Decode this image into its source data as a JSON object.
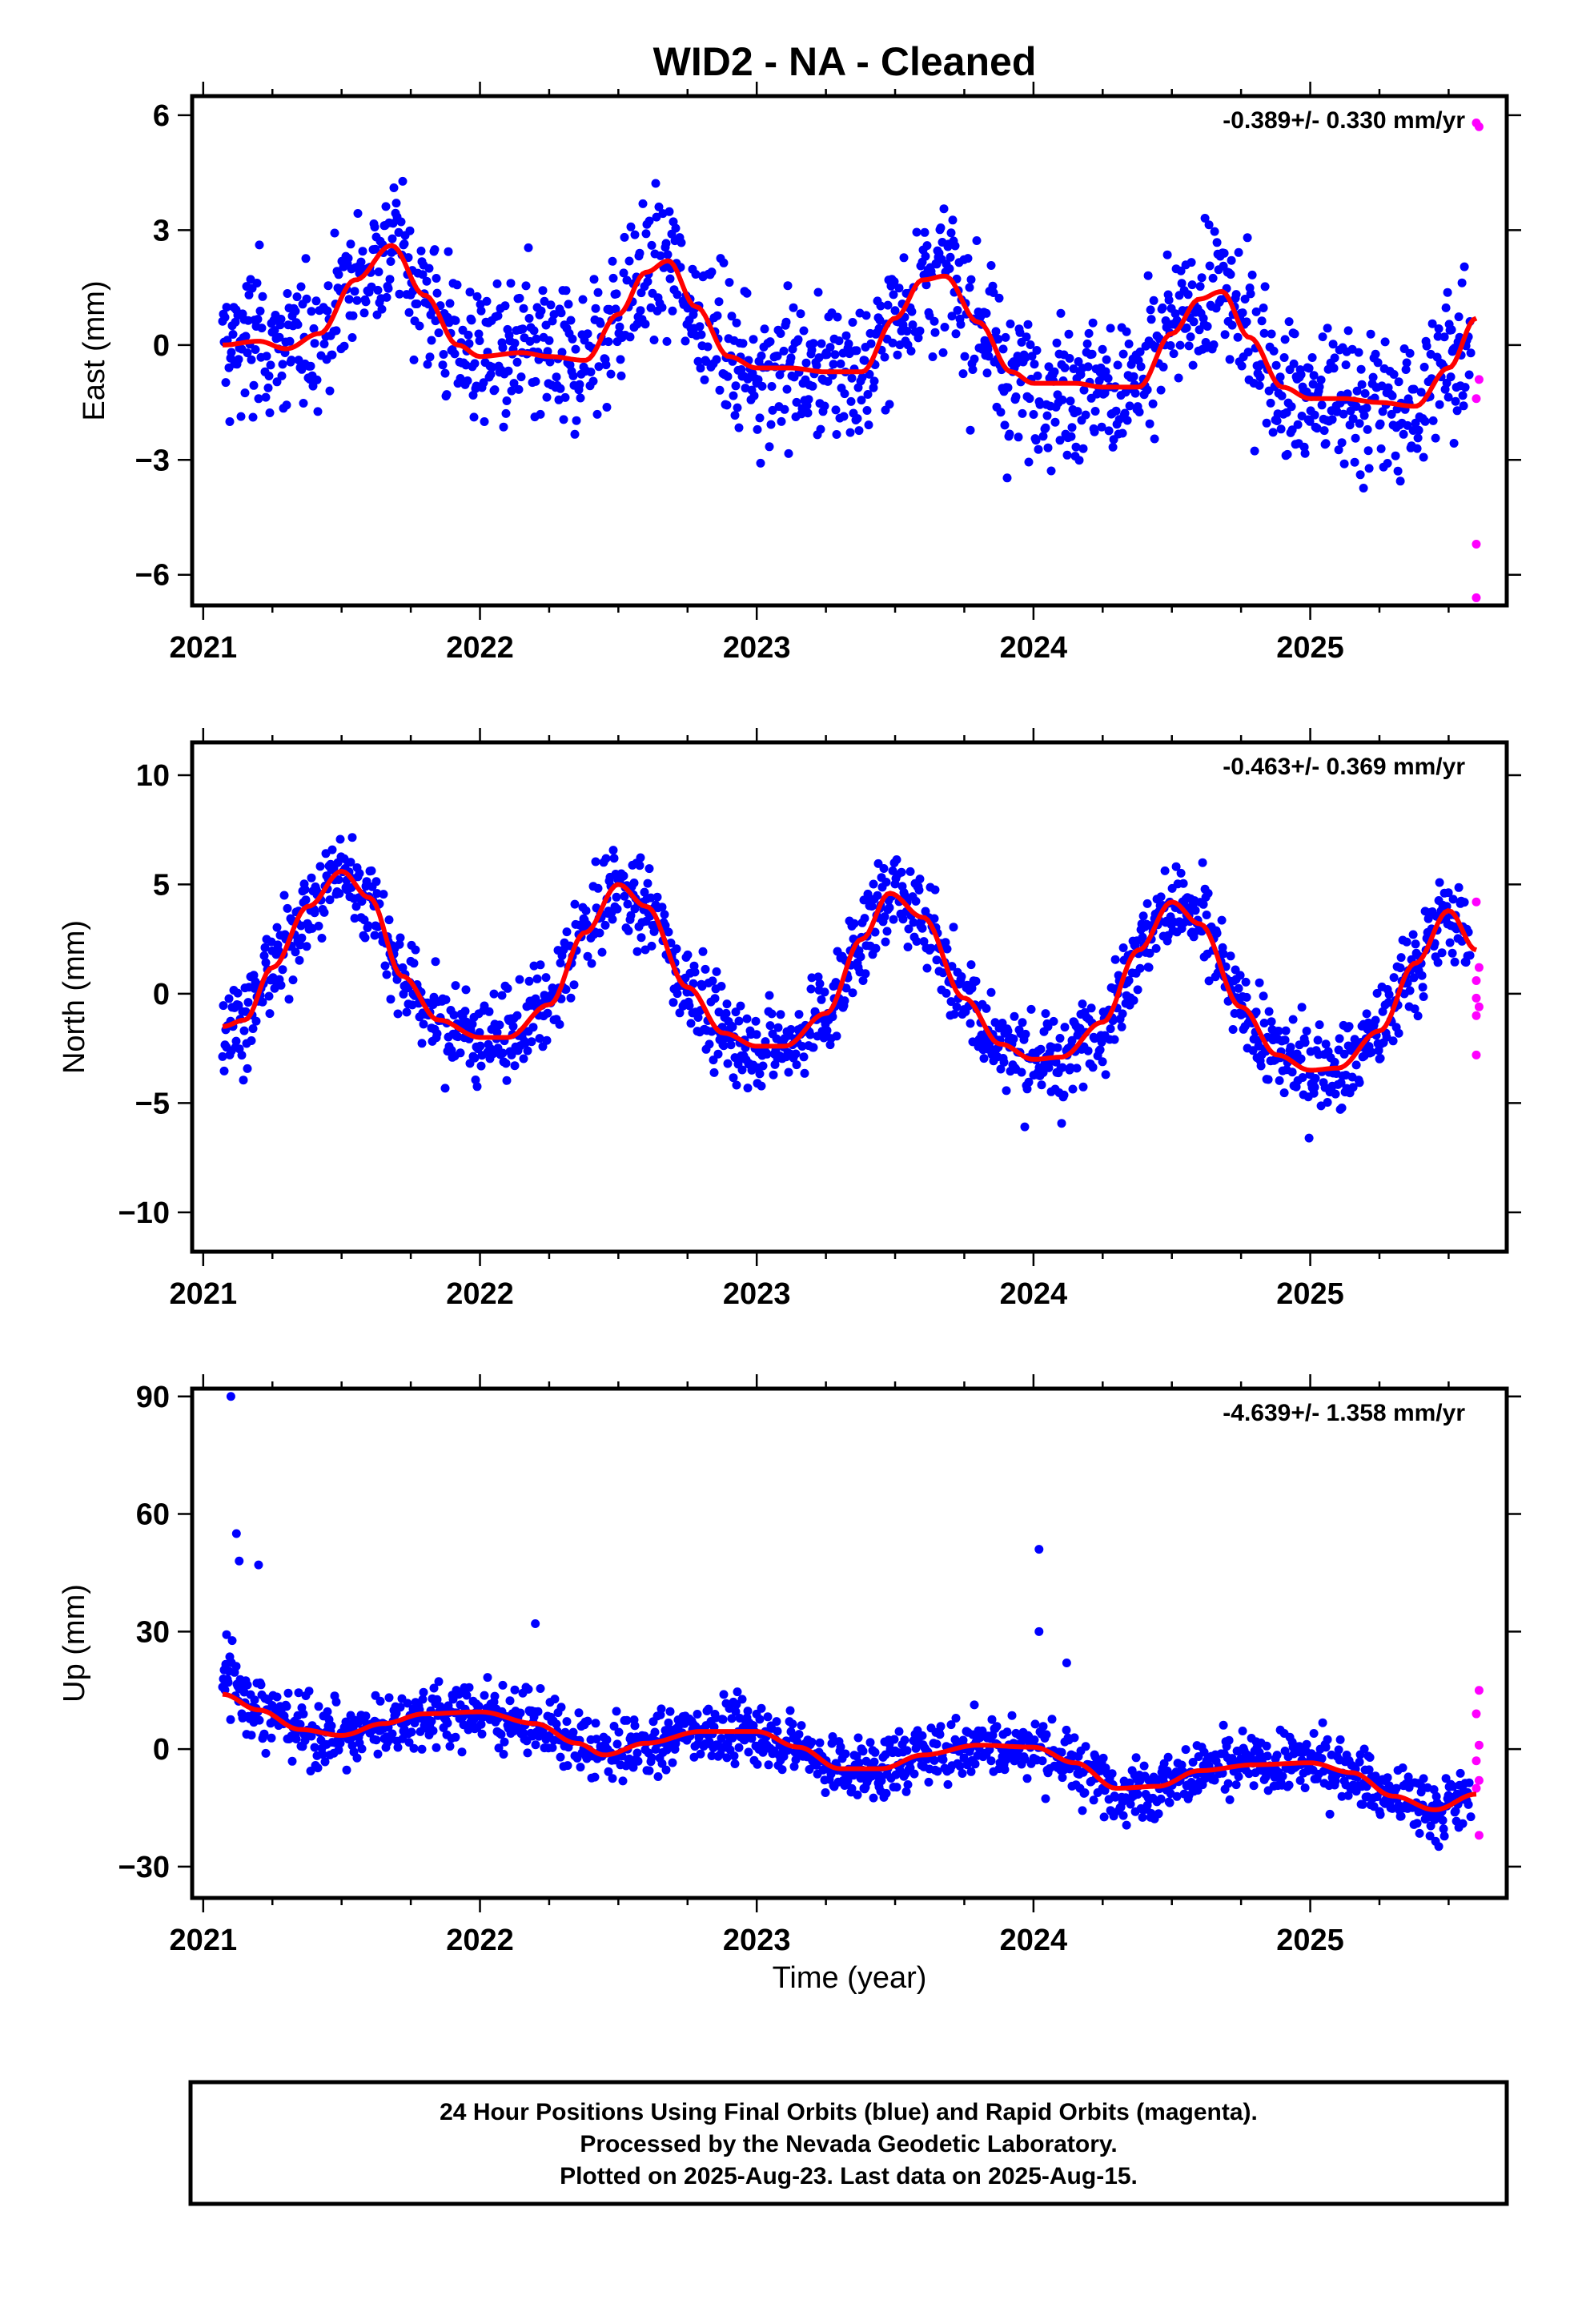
{
  "chart_data": {
    "title": "WID2  - NA - Cleaned",
    "xlabel": "Time (year)",
    "xlim": [
      2020.96,
      2025.71
    ],
    "x_ticks": [
      "2021",
      "2022",
      "2023",
      "2024",
      "2025"
    ],
    "colors": {
      "final_orbits": "#0000ff",
      "rapid_orbits": "#ff00ff",
      "model": "#ff0000"
    },
    "panels": [
      {
        "type": "scatter",
        "ylabel": "East (mm)",
        "ylim": [
          -6.8,
          6.5
        ],
        "yticks": [
          "6",
          "3",
          "0",
          "−3",
          "−6"
        ],
        "ytick_values": [
          6,
          3,
          0,
          -3,
          -6
        ],
        "rate": "-0.389+/- 0.330 mm/yr",
        "model_x": [
          2021.07,
          2021.2,
          2021.3,
          2021.42,
          2021.55,
          2021.68,
          2021.8,
          2021.92,
          2022.0,
          2022.15,
          2022.25,
          2022.38,
          2022.5,
          2022.6,
          2022.68,
          2022.78,
          2022.9,
          2023.0,
          2023.12,
          2023.25,
          2023.38,
          2023.5,
          2023.6,
          2023.68,
          2023.8,
          2023.92,
          2024.0,
          2024.15,
          2024.25,
          2024.38,
          2024.5,
          2024.6,
          2024.68,
          2024.78,
          2024.9,
          2025.0,
          2025.12,
          2025.25,
          2025.38,
          2025.5,
          2025.6
        ],
        "model_y": [
          0.0,
          0.1,
          -0.1,
          0.3,
          1.7,
          2.6,
          1.3,
          0.0,
          -0.3,
          -0.2,
          -0.3,
          -0.4,
          0.8,
          1.9,
          2.2,
          1.0,
          -0.3,
          -0.6,
          -0.6,
          -0.7,
          -0.7,
          0.7,
          1.7,
          1.8,
          0.6,
          -0.7,
          -1.0,
          -1.0,
          -1.1,
          -1.1,
          0.3,
          1.2,
          1.4,
          0.2,
          -1.1,
          -1.4,
          -1.4,
          -1.5,
          -1.6,
          -0.6,
          0.7
        ],
        "rapid_x": [
          2025.6,
          2025.61,
          2025.6,
          2025.61,
          2025.6,
          2025.6
        ],
        "rapid_y": [
          5.8,
          5.7,
          -1.4,
          -0.9,
          -5.2,
          -6.6
        ]
      },
      {
        "type": "scatter",
        "ylabel": "North (mm)",
        "ylim": [
          -11.8,
          11.5
        ],
        "yticks": [
          "10",
          "5",
          "0",
          "−5",
          "−10"
        ],
        "ytick_values": [
          10,
          5,
          0,
          -5,
          -10
        ],
        "rate": "-0.463+/- 0.369 mm/yr",
        "model_x": [
          2021.07,
          2021.15,
          2021.25,
          2021.38,
          2021.5,
          2021.6,
          2021.72,
          2021.85,
          2022.0,
          2022.1,
          2022.25,
          2022.38,
          2022.5,
          2022.6,
          2022.75,
          2022.88,
          2023.0,
          2023.1,
          2023.25,
          2023.38,
          2023.48,
          2023.6,
          2023.75,
          2023.88,
          2024.0,
          2024.1,
          2024.25,
          2024.38,
          2024.5,
          2024.6,
          2024.75,
          2024.88,
          2025.0,
          2025.1,
          2025.25,
          2025.38,
          2025.5,
          2025.6
        ],
        "model_y": [
          -1.5,
          -1.2,
          1.2,
          4.0,
          5.6,
          4.4,
          0.8,
          -1.2,
          -2.0,
          -2.0,
          -0.5,
          2.8,
          5.0,
          4.0,
          0.3,
          -1.8,
          -2.4,
          -2.4,
          -0.9,
          2.5,
          4.6,
          3.5,
          -0.2,
          -2.3,
          -3.0,
          -2.9,
          -1.3,
          2.0,
          4.2,
          3.2,
          -0.6,
          -2.8,
          -3.5,
          -3.4,
          -1.7,
          1.4,
          3.8,
          2.0
        ],
        "rapid_x": [
          2025.6,
          2025.61,
          2025.6,
          2025.6,
          2025.61,
          2025.6,
          2025.6
        ],
        "rapid_y": [
          4.2,
          1.2,
          0.6,
          -0.2,
          -0.6,
          -1.0,
          -2.8
        ]
      },
      {
        "type": "scatter",
        "ylabel": "Up (mm)",
        "ylim": [
          -38,
          92
        ],
        "yticks": [
          "90",
          "60",
          "30",
          "0",
          "−30"
        ],
        "ytick_values": [
          90,
          60,
          30,
          0,
          -30
        ],
        "rate": "-4.639+/- 1.358 mm/yr",
        "model_x": [
          2021.07,
          2021.2,
          2021.35,
          2021.5,
          2021.65,
          2021.8,
          2022.0,
          2022.2,
          2022.35,
          2022.45,
          2022.6,
          2022.8,
          2023.0,
          2023.15,
          2023.3,
          2023.45,
          2023.6,
          2023.8,
          2024.0,
          2024.15,
          2024.3,
          2024.45,
          2024.6,
          2024.8,
          2025.0,
          2025.15,
          2025.3,
          2025.45,
          2025.6
        ],
        "model_y": [
          14.0,
          10.0,
          5.0,
          3.5,
          6.5,
          9.0,
          9.5,
          6.5,
          1.5,
          -1.5,
          1.5,
          4.5,
          4.5,
          0.5,
          -5.0,
          -5.0,
          -1.5,
          1.0,
          0.5,
          -3.5,
          -10.0,
          -9.5,
          -5.5,
          -4.0,
          -3.5,
          -6.0,
          -12.0,
          -15.5,
          -11.5
        ],
        "outliers_x": [
          2021.1,
          2021.12,
          2021.13,
          2021.2,
          2022.2,
          2024.02,
          2024.02,
          2024.12
        ],
        "outliers_y": [
          90.0,
          55.0,
          48.0,
          47.0,
          32.0,
          51.0,
          30.0,
          22.0
        ],
        "rapid_x": [
          2025.61,
          2025.6,
          2025.61,
          2025.6,
          2025.61,
          2025.6,
          2025.61
        ],
        "rapid_y": [
          15.0,
          9.0,
          1.0,
          -3.0,
          -8.0,
          -10.0,
          -22.0
        ]
      }
    ]
  },
  "footer": {
    "line1": "24 Hour Positions Using Final Orbits (blue) and Rapid Orbits (magenta).",
    "line2": "Processed by the Nevada Geodetic Laboratory.",
    "line3": "Plotted on 2025-Aug-23. Last data on 2025-Aug-15."
  }
}
